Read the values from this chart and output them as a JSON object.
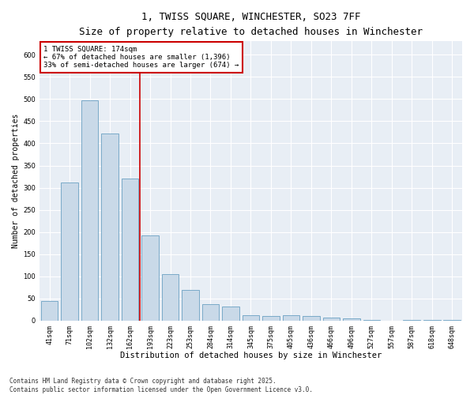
{
  "title_line1": "1, TWISS SQUARE, WINCHESTER, SO23 7FF",
  "title_line2": "Size of property relative to detached houses in Winchester",
  "xlabel": "Distribution of detached houses by size in Winchester",
  "ylabel": "Number of detached properties",
  "categories": [
    "41sqm",
    "71sqm",
    "102sqm",
    "132sqm",
    "162sqm",
    "193sqm",
    "223sqm",
    "253sqm",
    "284sqm",
    "314sqm",
    "345sqm",
    "375sqm",
    "405sqm",
    "436sqm",
    "466sqm",
    "496sqm",
    "527sqm",
    "557sqm",
    "587sqm",
    "618sqm",
    "648sqm"
  ],
  "values": [
    45,
    312,
    497,
    422,
    320,
    193,
    105,
    70,
    37,
    32,
    12,
    10,
    12,
    10,
    7,
    5,
    2,
    0,
    2,
    1,
    2
  ],
  "bar_color_fill": "#c9d9e8",
  "bar_color_edge": "#7aaac8",
  "vline_x": 4.5,
  "vline_color": "#cc0000",
  "annotation_text": "1 TWISS SQUARE: 174sqm\n← 67% of detached houses are smaller (1,396)\n33% of semi-detached houses are larger (674) →",
  "annotation_box_color": "#ffffff",
  "annotation_box_edge": "#cc0000",
  "ylim": [
    0,
    630
  ],
  "yticks": [
    0,
    50,
    100,
    150,
    200,
    250,
    300,
    350,
    400,
    450,
    500,
    550,
    600
  ],
  "background_color": "#e8eef5",
  "grid_color": "#ffffff",
  "footnote": "Contains HM Land Registry data © Crown copyright and database right 2025.\nContains public sector information licensed under the Open Government Licence v3.0.",
  "title_fontsize": 9,
  "subtitle_fontsize": 8,
  "tick_fontsize": 6,
  "xlabel_fontsize": 7.5,
  "ylabel_fontsize": 7,
  "annot_fontsize": 6.5,
  "footnote_fontsize": 5.5
}
